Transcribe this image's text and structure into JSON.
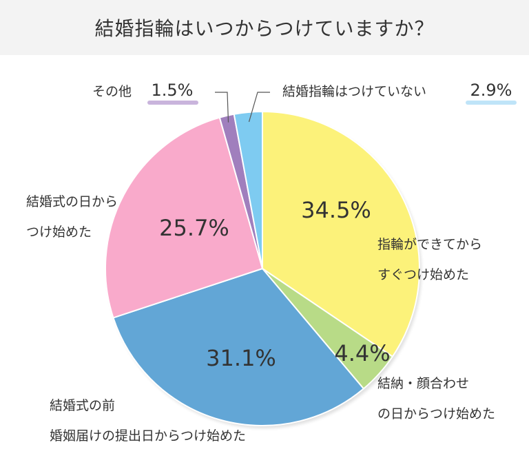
{
  "title": "結婚指輪はいつからつけていますか？",
  "chart_data": {
    "type": "pie",
    "title": "結婚指輪はいつからつけていますか？",
    "slices": [
      {
        "label_lines": [
          "指輪ができてから",
          "すぐつけ始めた"
        ],
        "value": 34.5,
        "value_label": "34.5%",
        "color": "#fcf27a"
      },
      {
        "label_lines": [
          "結納・顔合わせ",
          "の日からつけ始めた"
        ],
        "value": 4.4,
        "value_label": "4.4%",
        "color": "#b8db87"
      },
      {
        "label_lines": [
          "結婚式の前",
          "婚姻届けの提出日からつけ始めた"
        ],
        "value": 31.1,
        "value_label": "31.1%",
        "color": "#62a6d6"
      },
      {
        "label_lines": [
          "結婚式の日から",
          "つけ始めた"
        ],
        "value": 25.7,
        "value_label": "25.7%",
        "color": "#f9aacb"
      },
      {
        "label_lines": [
          "その他"
        ],
        "value": 1.5,
        "value_label": "1.5%",
        "color": "#a07fbd"
      },
      {
        "label_lines": [
          "結婚指輪はつけていない"
        ],
        "value": 2.9,
        "value_label": "2.9%",
        "color": "#7ecbf1"
      }
    ]
  }
}
